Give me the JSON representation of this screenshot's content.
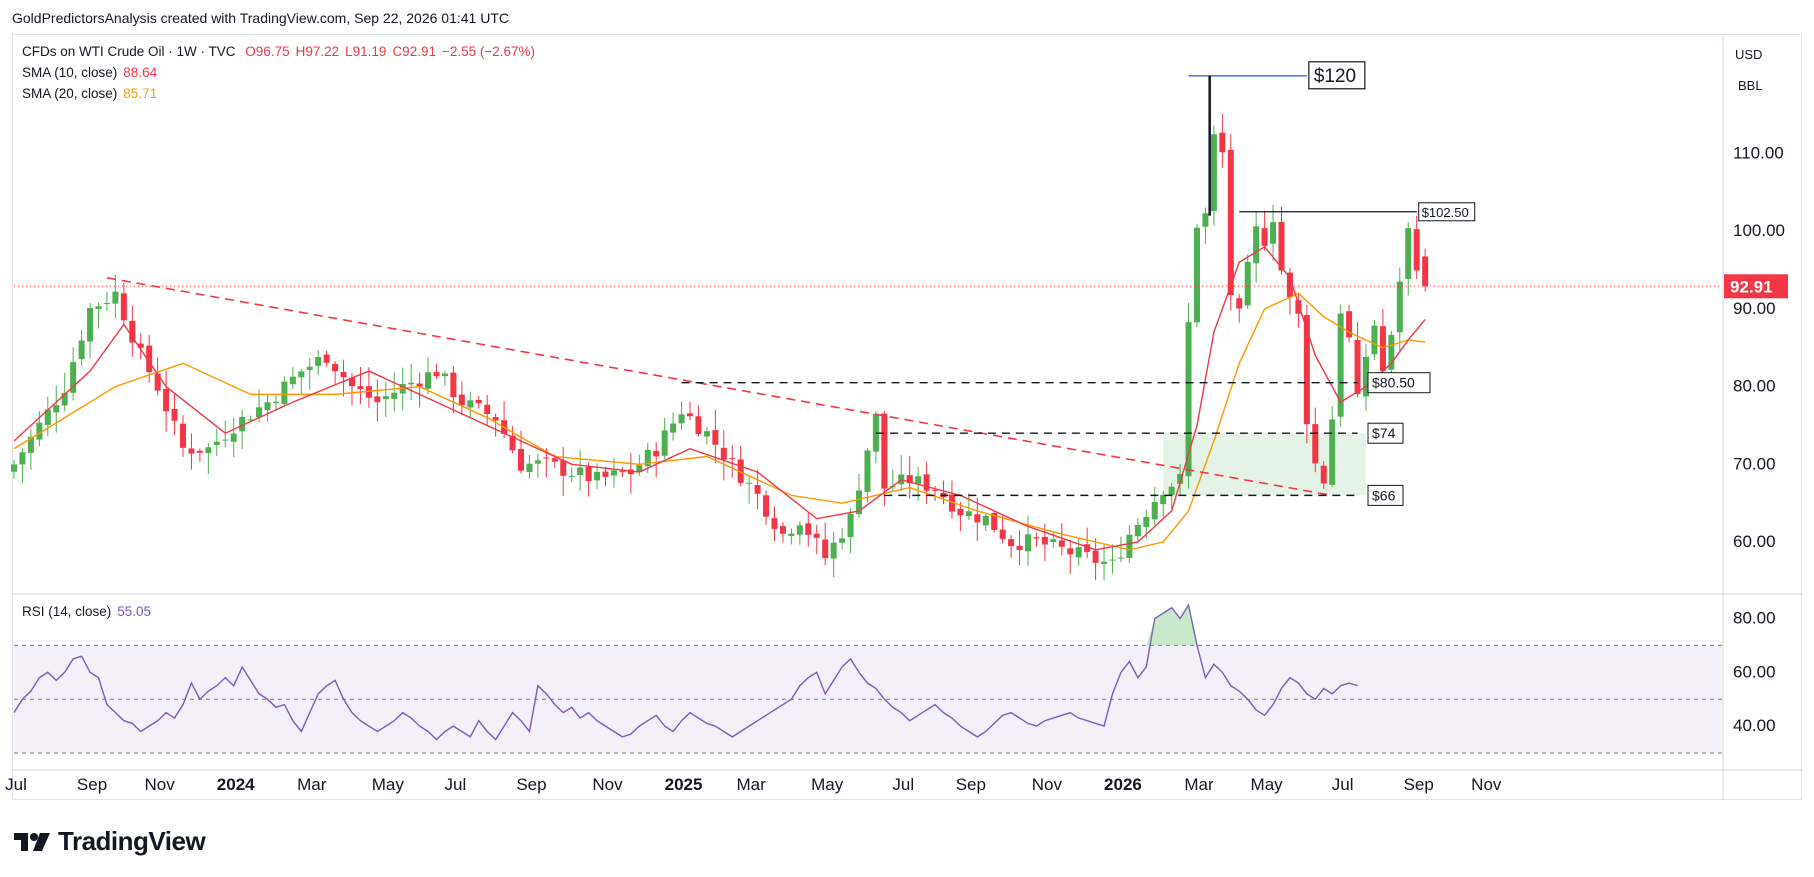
{
  "attribution": "GoldPredictorsAnalysis created with TradingView.com, Sep 22, 2026 01:41 UTC",
  "legend": {
    "symbol": "CFDs on WTI Crude Oil · 1W · TVC",
    "open": "O96.75",
    "high": "H97.22",
    "low": "L91.19",
    "close": "C92.91",
    "change": "−2.55 (−2.67%)",
    "sma10_label": "SMA (10, close)",
    "sma10_value": "88.64",
    "sma20_label": "SMA (20, close)",
    "sma20_value": "85.71",
    "rsi_label": "RSI (14, close)",
    "rsi_value": "55.05"
  },
  "price_scale": {
    "currency": "USD",
    "unit": "BBL"
  },
  "current_price_label": "92.91",
  "brand": "TradingView",
  "colors": {
    "up": "#4caf50",
    "down": "#f23645",
    "sma10": "#f23645",
    "sma20": "#ff9800",
    "rsi": "#7e57c2",
    "trendline": "#f23645",
    "target_line": "#2962ff"
  },
  "chart_data": [
    {
      "type": "candlestick",
      "title": "CFDs on WTI Crude Oil · 1W · TVC",
      "ylim": [
        54,
        123
      ],
      "y_ticks": [
        60,
        70,
        80,
        90,
        100,
        110
      ],
      "x_ticks": [
        "Jul",
        "Sep",
        "Nov",
        "2024",
        "Mar",
        "May",
        "Jul",
        "Sep",
        "Nov",
        "2025",
        "Mar",
        "May",
        "Jul",
        "Sep",
        "Nov",
        "2026",
        "Mar",
        "May",
        "Jul",
        "Sep",
        "Nov"
      ],
      "x_tick_weeks": [
        0,
        9,
        17,
        26,
        35,
        44,
        52,
        61,
        70,
        79,
        87,
        96,
        105,
        113,
        122,
        131,
        140,
        148,
        157,
        166,
        174
      ],
      "price_points": [
        [
          0,
          70
        ],
        [
          6,
          80
        ],
        [
          9,
          90
        ],
        [
          12,
          92
        ],
        [
          15,
          84
        ],
        [
          17,
          80
        ],
        [
          20,
          72
        ],
        [
          23,
          72
        ],
        [
          26,
          75
        ],
        [
          30,
          78
        ],
        [
          34,
          82
        ],
        [
          37,
          84
        ],
        [
          40,
          80
        ],
        [
          43,
          78
        ],
        [
          46,
          80
        ],
        [
          50,
          82
        ],
        [
          53,
          78
        ],
        [
          57,
          76
        ],
        [
          60,
          70
        ],
        [
          63,
          70
        ],
        [
          66,
          69
        ],
        [
          69,
          68
        ],
        [
          73,
          69
        ],
        [
          76,
          72
        ],
        [
          79,
          77
        ],
        [
          82,
          74
        ],
        [
          85,
          70
        ],
        [
          88,
          66
        ],
        [
          91,
          61
        ],
        [
          93,
          63
        ],
        [
          96,
          58
        ],
        [
          99,
          63
        ],
        [
          101,
          72
        ],
        [
          102,
          76
        ],
        [
          103,
          67
        ],
        [
          106,
          68
        ],
        [
          109,
          67
        ],
        [
          112,
          64
        ],
        [
          115,
          63
        ],
        [
          118,
          60
        ],
        [
          121,
          60
        ],
        [
          124,
          59
        ],
        [
          127,
          58
        ],
        [
          130,
          57
        ],
        [
          132,
          61
        ],
        [
          134,
          64
        ],
        [
          136,
          67
        ],
        [
          138,
          68
        ],
        [
          139,
          88
        ],
        [
          140,
          101
        ],
        [
          141,
          102
        ],
        [
          142,
          112
        ],
        [
          143,
          110
        ],
        [
          144,
          92
        ],
        [
          145,
          89
        ],
        [
          146,
          95
        ],
        [
          147,
          100
        ],
        [
          148,
          99
        ],
        [
          149,
          102
        ],
        [
          150,
          95
        ],
        [
          151,
          91
        ],
        [
          152,
          89
        ],
        [
          153,
          76
        ],
        [
          154,
          70
        ],
        [
          155,
          68
        ],
        [
          156,
          76
        ],
        [
          157,
          90
        ],
        [
          158,
          86
        ],
        [
          159,
          78
        ],
        [
          160,
          84
        ],
        [
          161,
          88
        ],
        [
          162,
          82
        ],
        [
          163,
          86
        ],
        [
          164,
          94
        ],
        [
          165,
          100
        ],
        [
          166,
          96
        ],
        [
          167,
          93
        ]
      ],
      "sma10_points": [
        [
          0,
          73
        ],
        [
          9,
          82
        ],
        [
          13,
          88
        ],
        [
          18,
          80
        ],
        [
          25,
          74
        ],
        [
          33,
          78
        ],
        [
          42,
          82
        ],
        [
          50,
          78
        ],
        [
          58,
          74
        ],
        [
          66,
          70
        ],
        [
          74,
          69
        ],
        [
          80,
          72
        ],
        [
          88,
          69
        ],
        [
          95,
          63
        ],
        [
          100,
          64
        ],
        [
          105,
          68
        ],
        [
          112,
          66
        ],
        [
          120,
          62
        ],
        [
          128,
          59
        ],
        [
          133,
          60
        ],
        [
          137,
          64
        ],
        [
          140,
          75
        ],
        [
          142,
          87
        ],
        [
          145,
          96
        ],
        [
          148,
          98
        ],
        [
          151,
          94
        ],
        [
          154,
          84
        ],
        [
          157,
          78
        ],
        [
          160,
          80
        ],
        [
          163,
          83
        ],
        [
          165,
          86
        ],
        [
          167,
          88.64
        ]
      ],
      "sma20_points": [
        [
          0,
          72
        ],
        [
          12,
          80
        ],
        [
          20,
          83
        ],
        [
          28,
          79
        ],
        [
          38,
          79
        ],
        [
          48,
          80
        ],
        [
          56,
          76
        ],
        [
          64,
          71
        ],
        [
          74,
          70
        ],
        [
          82,
          71
        ],
        [
          92,
          66
        ],
        [
          98,
          65
        ],
        [
          106,
          67
        ],
        [
          114,
          64
        ],
        [
          124,
          61
        ],
        [
          132,
          59
        ],
        [
          136,
          60
        ],
        [
          139,
          64
        ],
        [
          142,
          73
        ],
        [
          145,
          83
        ],
        [
          148,
          90
        ],
        [
          152,
          92
        ],
        [
          155,
          89
        ],
        [
          158,
          87
        ],
        [
          162,
          85
        ],
        [
          165,
          86
        ],
        [
          167,
          85.71
        ]
      ],
      "trendline": {
        "from": [
          11,
          94
        ],
        "to": [
          156,
          66
        ]
      },
      "support_levels": [
        {
          "label": "$66",
          "price": 66
        },
        {
          "label": "$74",
          "price": 74
        },
        {
          "label": "$80.50",
          "price": 80.5
        }
      ],
      "resistance_level": {
        "label": "$102.50",
        "price": 102.5
      },
      "target": {
        "label": "$120",
        "price": 120
      },
      "support_zone": {
        "from_week": 136,
        "to_week": 160,
        "low": 66,
        "high": 74
      },
      "last_price": 92.91
    },
    {
      "type": "line",
      "title": "RSI (14, close)",
      "ylim": [
        30,
        88
      ],
      "y_ticks": [
        40,
        60,
        80
      ],
      "overbought": 70,
      "middle": 50,
      "oversold": 30,
      "values": [
        45,
        50,
        53,
        58,
        60,
        57,
        60,
        65,
        66,
        60,
        58,
        48,
        45,
        42,
        41,
        38,
        40,
        42,
        45,
        43,
        48,
        56,
        50,
        53,
        55,
        58,
        55,
        62,
        57,
        52,
        50,
        47,
        48,
        42,
        38,
        45,
        52,
        55,
        57,
        50,
        45,
        42,
        40,
        38,
        40,
        42,
        45,
        43,
        40,
        38,
        35,
        38,
        40,
        38,
        36,
        42,
        38,
        35,
        40,
        45,
        42,
        38,
        55,
        52,
        48,
        45,
        47,
        43,
        45,
        42,
        40,
        38,
        36,
        37,
        40,
        42,
        44,
        40,
        38,
        42,
        45,
        43,
        41,
        40,
        38,
        36,
        38,
        40,
        42,
        44,
        46,
        48,
        50,
        55,
        58,
        60,
        52,
        57,
        62,
        65,
        60,
        56,
        54,
        50,
        47,
        45,
        42,
        44,
        46,
        48,
        45,
        43,
        40,
        38,
        36,
        38,
        41,
        44,
        45,
        43,
        41,
        40,
        42,
        43,
        44,
        45,
        43,
        42,
        41,
        40,
        52,
        60,
        64,
        58,
        62,
        80,
        82,
        84,
        80,
        85,
        70,
        58,
        63,
        60,
        55,
        53,
        50,
        46,
        44,
        48,
        54,
        58,
        56,
        52,
        50,
        54,
        52,
        55,
        56,
        55.05
      ]
    }
  ]
}
